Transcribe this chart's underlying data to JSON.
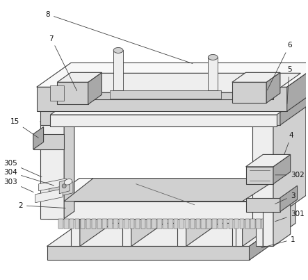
{
  "bg_color": "#ffffff",
  "lc": "#404040",
  "fl": "#eeeeee",
  "fm": "#d0d0d0",
  "fd": "#a8a8a8",
  "fw": "#f8f8f8",
  "lw": 0.8,
  "lw_t": 0.5
}
